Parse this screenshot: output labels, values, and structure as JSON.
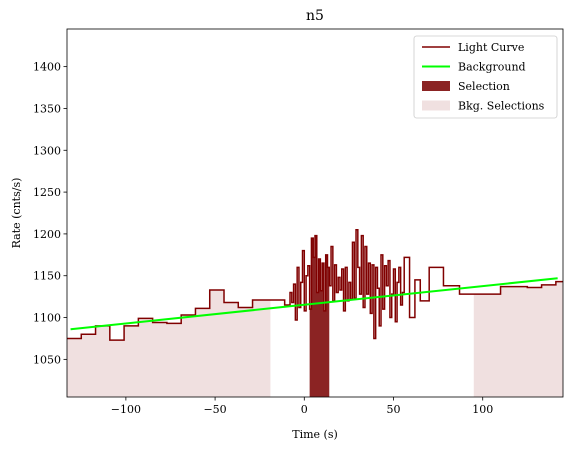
{
  "chart_data": {
    "type": "line",
    "title": "n5",
    "xlabel": "Time (s)",
    "ylabel": "Rate (cnts/s)",
    "xlim": [
      -133,
      145
    ],
    "ylim": [
      1005,
      1445
    ],
    "xticks": [
      -100,
      -50,
      0,
      50,
      100
    ],
    "yticks": [
      1050,
      1100,
      1150,
      1200,
      1250,
      1300,
      1350,
      1400
    ],
    "xtick_labels": [
      "−100",
      "−50",
      "0",
      "50",
      "100"
    ],
    "ytick_labels": [
      "1050",
      "1100",
      "1150",
      "1200",
      "1250",
      "1300",
      "1350",
      "1400"
    ],
    "grid": false,
    "legend_position": "top-right",
    "legend": [
      {
        "label": "Light Curve",
        "kind": "line",
        "color": "#800000"
      },
      {
        "label": "Background",
        "kind": "line",
        "color": "#00ff00"
      },
      {
        "label": "Selection",
        "kind": "patch",
        "color": "#8b2323"
      },
      {
        "label": "Bkg. Selections",
        "kind": "patch",
        "color": "#f0e0e0"
      }
    ],
    "colors": {
      "light_curve": "#800000",
      "background": "#00ff00",
      "selection": "#8b2323",
      "bkg_selection": "#f0e0e0"
    },
    "background_fit": {
      "x": [
        -131,
        142
      ],
      "y": [
        1086,
        1147
      ]
    },
    "selection_interval": [
      3,
      14
    ],
    "bkg_selection_intervals": [
      [
        -133,
        -19
      ],
      [
        95,
        145
      ]
    ],
    "light_curve": {
      "edges": [
        -133,
        -125,
        -117,
        -109,
        -101,
        -93,
        -85,
        -77,
        -69,
        -61,
        -53,
        -45,
        -37,
        -29,
        -19,
        -11,
        -8,
        -7,
        -6,
        -5,
        -4,
        -3,
        -2,
        -1,
        0,
        1,
        2,
        3,
        4,
        5,
        6,
        7,
        8,
        9,
        10,
        11,
        12,
        13,
        14,
        15,
        16,
        17,
        18,
        19,
        20,
        21,
        22,
        23,
        24,
        25,
        26,
        27,
        28,
        29,
        30,
        31,
        32,
        33,
        34,
        35,
        36,
        37,
        38,
        39,
        40,
        41,
        42,
        43,
        44,
        45,
        46,
        47,
        48,
        49,
        50,
        51,
        52,
        53,
        54,
        55,
        56,
        59,
        62,
        65,
        70,
        78,
        87,
        95,
        110,
        125,
        133,
        141,
        145
      ],
      "rates": [
        1075,
        1080,
        1090,
        1073,
        1090,
        1099,
        1094,
        1093,
        1103,
        1111,
        1133,
        1118,
        1112,
        1121,
        1121,
        1115,
        1130,
        1118,
        1140,
        1097,
        1160,
        1112,
        1142,
        1180,
        1108,
        1150,
        1162,
        1110,
        1195,
        1172,
        1198,
        1130,
        1170,
        1132,
        1165,
        1108,
        1175,
        1160,
        1138,
        1185,
        1120,
        1163,
        1130,
        1148,
        1133,
        1158,
        1108,
        1160,
        1120,
        1142,
        1122,
        1190,
        1123,
        1205,
        1160,
        1128,
        1198,
        1112,
        1185,
        1128,
        1165,
        1105,
        1163,
        1075,
        1160,
        1135,
        1090,
        1175,
        1110,
        1162,
        1138,
        1168,
        1100,
        1128,
        1158,
        1095,
        1142,
        1160,
        1115,
        1130,
        1172,
        1100,
        1145,
        1120,
        1160,
        1138,
        1128,
        1128,
        1137,
        1136,
        1139,
        1143
      ]
    }
  }
}
